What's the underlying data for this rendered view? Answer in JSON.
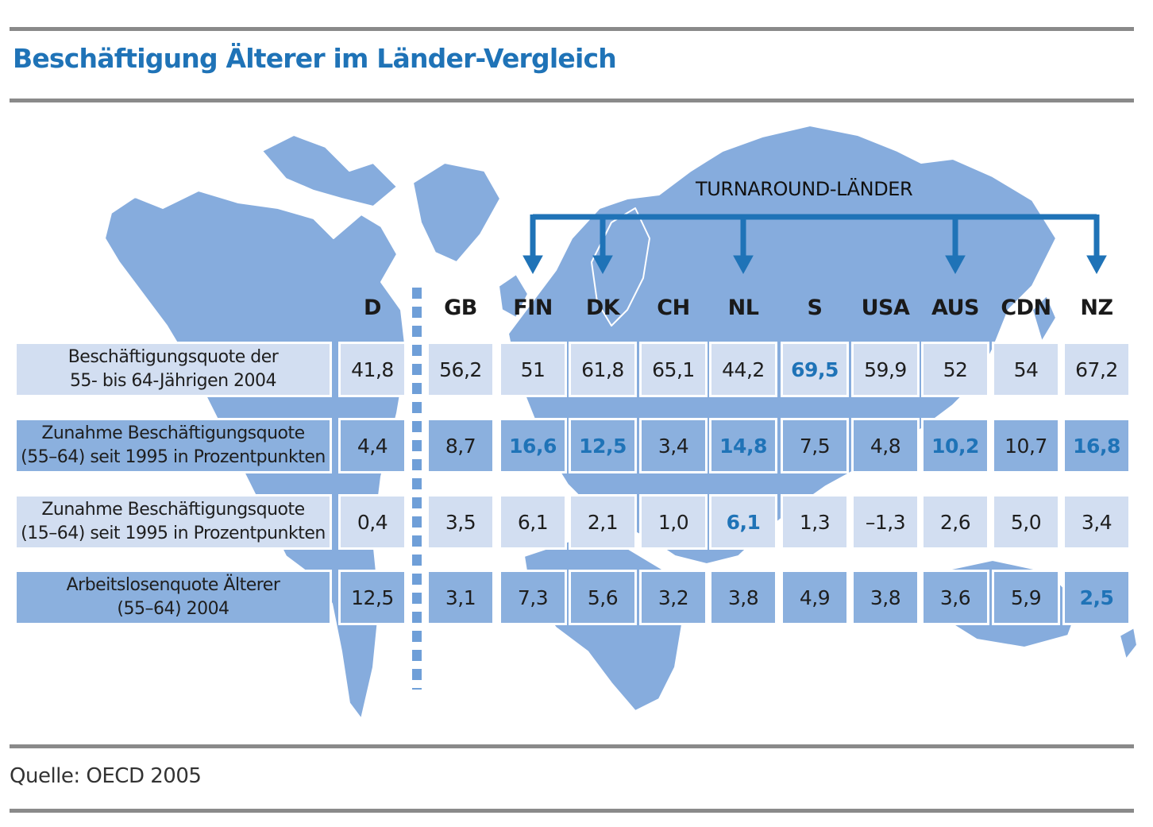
{
  "title": "Beschäftigung Älterer im Länder-Vergleich",
  "source": "Quelle: OECD 2005",
  "turnaround_label": "TURNAROUND-LÄNDER",
  "colors": {
    "title": "#1f73b7",
    "map": "#86acdd",
    "row_light": "#d2def1",
    "row_dark": "#8bb0de",
    "highlight": "#1f73b7",
    "arrow": "#1f73b7",
    "rule": "#8a8a8a"
  },
  "chart_data": {
    "type": "table",
    "columns": [
      "D",
      "GB",
      "FIN",
      "DK",
      "CH",
      "NL",
      "S",
      "USA",
      "AUS",
      "CDN",
      "NZ"
    ],
    "turnaround_countries": [
      "FIN",
      "DK",
      "NL",
      "AUS",
      "NZ"
    ],
    "rows": [
      {
        "label": "Beschäftigungsquote der\n55- bis 64-Jährigen 2004",
        "values": [
          "41,8",
          "56,2",
          "51",
          "61,8",
          "65,1",
          "44,2",
          "69,5",
          "59,9",
          "52",
          "54",
          "67,2"
        ],
        "highlight": [
          "S"
        ]
      },
      {
        "label": "Zunahme Beschäftigungsquote\n(55–64) seit 1995 in Prozentpunkten",
        "values": [
          "4,4",
          "8,7",
          "16,6",
          "12,5",
          "3,4",
          "14,8",
          "7,5",
          "4,8",
          "10,2",
          "10,7",
          "16,8"
        ],
        "highlight": [
          "FIN",
          "DK",
          "NL",
          "AUS",
          "NZ"
        ]
      },
      {
        "label": "Zunahme Beschäftigungsquote\n(15–64) seit 1995 in Prozentpunkten",
        "values": [
          "0,4",
          "3,5",
          "6,1",
          "2,1",
          "1,0",
          "6,1",
          "1,3",
          "–1,3",
          "2,6",
          "5,0",
          "3,4"
        ],
        "highlight": [
          "NL"
        ]
      },
      {
        "label": "Arbeitslosenquote Älterer\n(55–64) 2004",
        "values": [
          "12,5",
          "3,1",
          "7,3",
          "5,6",
          "3,2",
          "3,8",
          "4,9",
          "3,8",
          "3,6",
          "5,9",
          "2,5"
        ],
        "highlight": [
          "NZ"
        ]
      }
    ]
  }
}
